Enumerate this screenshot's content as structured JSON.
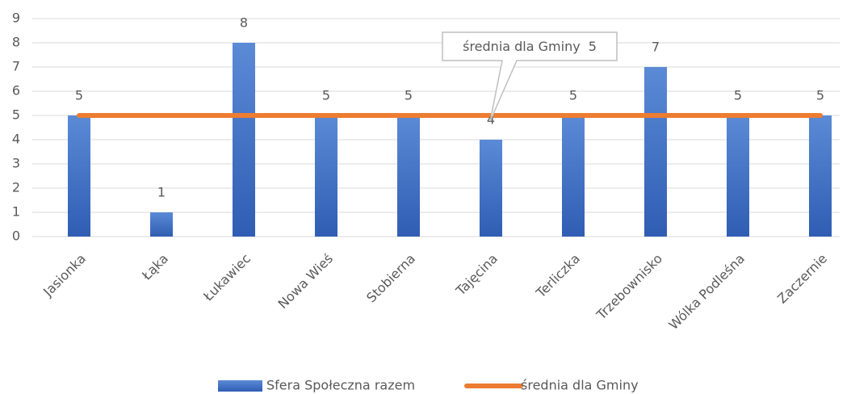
{
  "chart_data": {
    "type": "bar",
    "categories": [
      "Jasionka",
      "Łąka",
      "Łukawiec",
      "Nowa Wieś",
      "Stobierna",
      "Tajęcina",
      "Terliczka",
      "Trzebownisko",
      "Wólka Podleśna",
      "Zaczernie"
    ],
    "series": [
      {
        "name": "Sfera Społeczna razem",
        "type": "bar",
        "color": "#4472c4",
        "values": [
          5,
          1,
          8,
          5,
          5,
          4,
          5,
          7,
          5,
          5
        ]
      },
      {
        "name": "średnia dla Gminy",
        "type": "line",
        "color": "#ed7d31",
        "values": [
          5,
          5,
          5,
          5,
          5,
          5,
          5,
          5,
          5,
          5
        ]
      }
    ],
    "ylim": [
      0,
      9
    ],
    "yticks": [
      0,
      1,
      2,
      3,
      4,
      5,
      6,
      7,
      8,
      9
    ],
    "grid": true,
    "legend": "bottom"
  }
}
